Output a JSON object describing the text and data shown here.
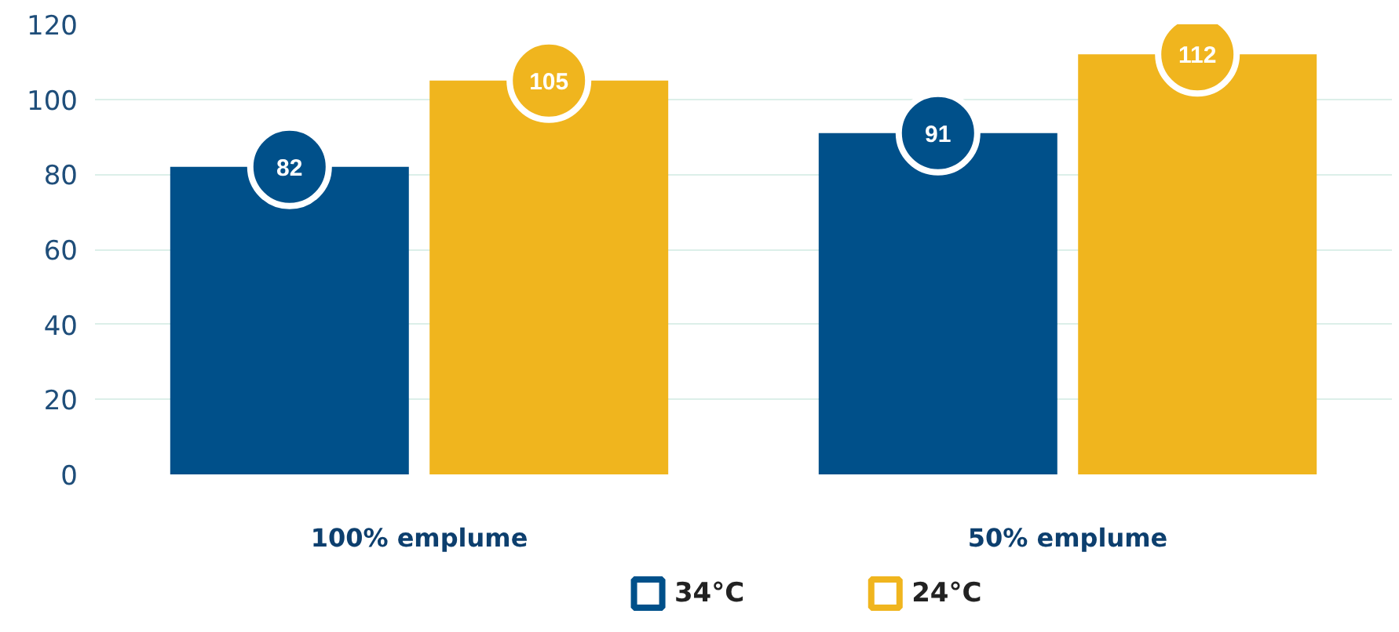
{
  "chart_data": {
    "type": "bar",
    "categories": [
      "100% emplume",
      "50% emplume"
    ],
    "series": [
      {
        "name": "34°C",
        "color": "#00508a",
        "values": [
          82,
          91
        ]
      },
      {
        "name": "24°C",
        "color": "#f0b51e",
        "values": [
          105,
          112
        ]
      }
    ],
    "ylim": [
      0,
      120
    ],
    "yticks": [
      0,
      20,
      40,
      60,
      80,
      100,
      120
    ],
    "grid": "y",
    "legend": "bottom",
    "data_labels": true
  }
}
